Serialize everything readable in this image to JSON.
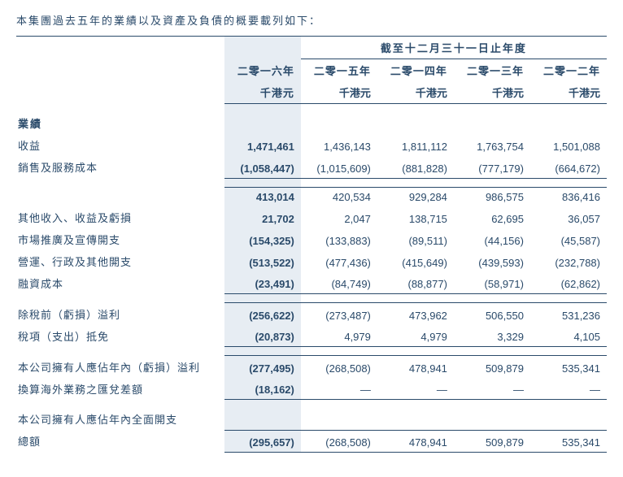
{
  "intro": "本集團過去五年的業績以及資產及負債的概要載列如下：",
  "header": {
    "span": "截至十二月三十一日止年度",
    "years": [
      "二零一六年",
      "二零一五年",
      "二零一四年",
      "二零一三年",
      "二零一二年"
    ],
    "unit": "千港元"
  },
  "sections": [
    {
      "title": "業績",
      "rows": [
        {
          "label": "收益",
          "vals": [
            "1,471,461",
            "1,436,143",
            "1,811,112",
            "1,763,754",
            "1,501,088"
          ]
        },
        {
          "label": "銷售及服務成本",
          "vals": [
            "(1,058,447)",
            "(1,015,609)",
            "(881,828)",
            "(777,179)",
            "(664,672)"
          ]
        }
      ]
    },
    {
      "rows": [
        {
          "label": "",
          "vals": [
            "413,014",
            "420,534",
            "929,284",
            "986,575",
            "836,416"
          ]
        },
        {
          "label": "其他收入、收益及虧損",
          "vals": [
            "21,702",
            "2,047",
            "138,715",
            "62,695",
            "36,057"
          ]
        },
        {
          "label": "市場推廣及宣傳開支",
          "vals": [
            "(154,325)",
            "(133,883)",
            "(89,511)",
            "(44,156)",
            "(45,587)"
          ]
        },
        {
          "label": "營運、行政及其他開支",
          "vals": [
            "(513,522)",
            "(477,436)",
            "(415,649)",
            "(439,593)",
            "(232,788)"
          ]
        },
        {
          "label": "融資成本",
          "vals": [
            "(23,491)",
            "(84,749)",
            "(88,877)",
            "(58,971)",
            "(62,862)"
          ]
        }
      ]
    },
    {
      "rows": [
        {
          "label": "除稅前（虧損）溢利",
          "vals": [
            "(256,622)",
            "(273,487)",
            "473,962",
            "506,550",
            "531,236"
          ]
        },
        {
          "label": "稅項（支出）抵免",
          "vals": [
            "(20,873)",
            "4,979",
            "4,979",
            "3,329",
            "4,105"
          ]
        }
      ]
    },
    {
      "rows": [
        {
          "label": "本公司擁有人應佔年內（虧損）溢利",
          "vals": [
            "(277,495)",
            "(268,508)",
            "478,941",
            "509,879",
            "535,341"
          ]
        },
        {
          "label": "換算海外業務之匯兌差額",
          "vals": [
            "(18,162)",
            "—",
            "—",
            "—",
            "—"
          ]
        }
      ]
    },
    {
      "rows": [
        {
          "label": "本公司擁有人應佔年內全面開支",
          "vals": [
            "",
            "",
            "",
            "",
            ""
          ]
        },
        {
          "label": "總額",
          "indent": true,
          "vals": [
            "(295,657)",
            "(268,508)",
            "478,941",
            "509,879",
            "535,341"
          ]
        }
      ]
    }
  ]
}
